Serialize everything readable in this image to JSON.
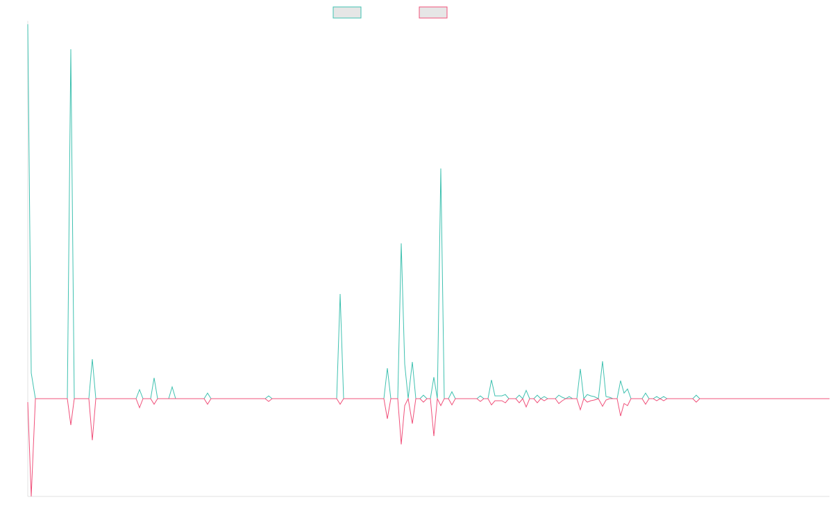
{
  "chart_data": {
    "type": "line",
    "xlim": [
      0,
      1155
    ],
    "ylim": [
      -141,
      540
    ],
    "series": [
      {
        "color": "#3fc1b0",
        "x": [
          0,
          5,
          11,
          57,
          62,
          67,
          88,
          93,
          98,
          156,
          161,
          166,
          177,
          182,
          187,
          203,
          208,
          213,
          254,
          259,
          264,
          342,
          347,
          352,
          445,
          450,
          455,
          513,
          518,
          523,
          533,
          538,
          543,
          548,
          554,
          559,
          565,
          570,
          575,
          580,
          585,
          590,
          595,
          600,
          606,
          611,
          616,
          647,
          652,
          657,
          663,
          668,
          673,
          683,
          688,
          693,
          703,
          708,
          713,
          718,
          723,
          729,
          734,
          739,
          744,
          749,
          760,
          765,
          770,
          775,
          780,
          785,
          791,
          796,
          801,
          806,
          811,
          816,
          822,
          828,
          833,
          838,
          843,
          849,
          854,
          859,
          864,
          869,
          885,
          890,
          895,
          901,
          906,
          911,
          916,
          921,
          958,
          963,
          968,
          1155
        ],
        "values": [
          540,
          37,
          0,
          0,
          504,
          0,
          0,
          57,
          0,
          0,
          13,
          0,
          0,
          30,
          0,
          0,
          17,
          0,
          0,
          8,
          0,
          0,
          4,
          0,
          0,
          151,
          0,
          0,
          44,
          0,
          0,
          224,
          50,
          0,
          53,
          0,
          0,
          5,
          0,
          0,
          31,
          0,
          332,
          0,
          0,
          10,
          0,
          0,
          4,
          0,
          0,
          27,
          4,
          4,
          6,
          0,
          0,
          5,
          0,
          12,
          0,
          0,
          5,
          0,
          3,
          0,
          0,
          5,
          2,
          0,
          3,
          0,
          0,
          43,
          0,
          6,
          4,
          3,
          0,
          54,
          3,
          2,
          0,
          0,
          26,
          8,
          14,
          0,
          0,
          8,
          0,
          0,
          3,
          0,
          3,
          0,
          0,
          5,
          0,
          0
        ]
      },
      {
        "color": "#f0507a",
        "x": [
          0,
          5,
          11,
          57,
          62,
          67,
          88,
          93,
          98,
          156,
          161,
          166,
          177,
          182,
          187,
          254,
          259,
          264,
          342,
          347,
          352,
          445,
          450,
          455,
          513,
          518,
          523,
          533,
          538,
          543,
          548,
          554,
          559,
          565,
          570,
          575,
          580,
          585,
          590,
          595,
          600,
          606,
          611,
          616,
          647,
          652,
          657,
          663,
          668,
          673,
          683,
          688,
          693,
          703,
          708,
          713,
          718,
          723,
          729,
          734,
          739,
          744,
          749,
          760,
          765,
          770,
          775,
          791,
          796,
          801,
          806,
          811,
          816,
          822,
          828,
          833,
          838,
          849,
          854,
          859,
          864,
          869,
          885,
          890,
          895,
          901,
          906,
          911,
          916,
          921,
          958,
          963,
          968,
          1155
        ],
        "values": [
          -5,
          -141,
          0,
          0,
          -38,
          0,
          0,
          -60,
          0,
          0,
          -13,
          0,
          0,
          -8,
          0,
          0,
          -8,
          0,
          0,
          -4,
          0,
          0,
          -8,
          0,
          0,
          -29,
          0,
          0,
          -66,
          -10,
          0,
          -36,
          0,
          0,
          -5,
          0,
          0,
          -54,
          0,
          -10,
          0,
          0,
          -9,
          0,
          0,
          -4,
          0,
          0,
          -9,
          -3,
          -3,
          -6,
          0,
          0,
          -6,
          0,
          -12,
          0,
          0,
          -6,
          0,
          -3,
          0,
          0,
          -7,
          -3,
          0,
          0,
          -16,
          0,
          -5,
          -3,
          -2,
          0,
          -11,
          -2,
          0,
          0,
          -25,
          -7,
          -10,
          0,
          0,
          -8,
          0,
          0,
          -3,
          0,
          -3,
          0,
          0,
          -5,
          0,
          0
        ]
      }
    ]
  }
}
